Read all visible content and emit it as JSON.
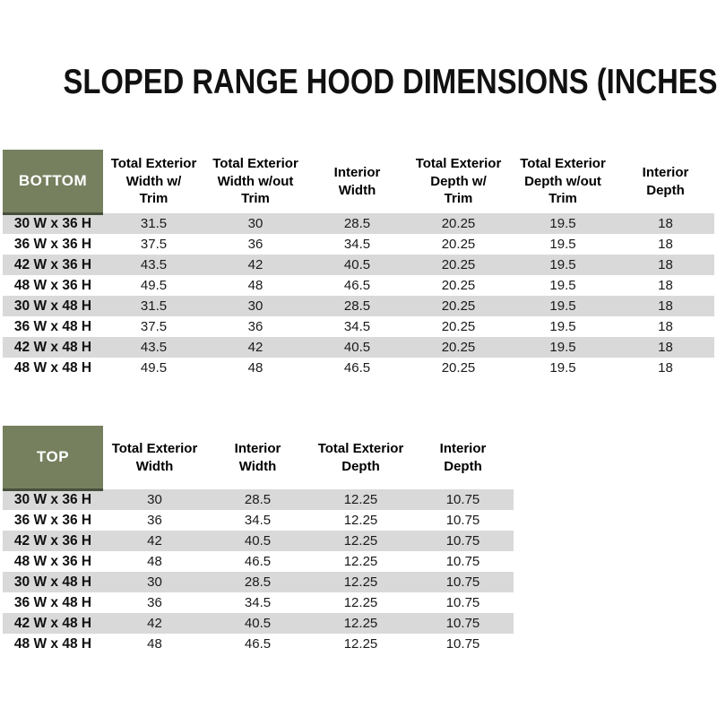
{
  "title": "SLOPED RANGE HOOD DIMENSIONS (INCHES)",
  "colors": {
    "header_green": "#76805F",
    "green_border": "#47503C",
    "stripe_gray": "#D9D9D9",
    "text": "#1A1A1A"
  },
  "bottom_table": {
    "label": "BOTTOM",
    "columns": [
      "Total Exterior\nWidth w/\nTrim",
      "Total Exterior\nWidth w/out\nTrim",
      "Interior\nWidth",
      "Total Exterior\nDepth w/\nTrim",
      "Total Exterior\nDepth w/out\nTrim",
      "Interior\nDepth"
    ],
    "rows": [
      {
        "size": "30 W x 36 H",
        "values": [
          "31.5",
          "30",
          "28.5",
          "20.25",
          "19.5",
          "18"
        ]
      },
      {
        "size": "36 W x 36 H",
        "values": [
          "37.5",
          "36",
          "34.5",
          "20.25",
          "19.5",
          "18"
        ]
      },
      {
        "size": "42 W x 36 H",
        "values": [
          "43.5",
          "42",
          "40.5",
          "20.25",
          "19.5",
          "18"
        ]
      },
      {
        "size": "48 W x 36 H",
        "values": [
          "49.5",
          "48",
          "46.5",
          "20.25",
          "19.5",
          "18"
        ]
      },
      {
        "size": "30 W x 48 H",
        "values": [
          "31.5",
          "30",
          "28.5",
          "20.25",
          "19.5",
          "18"
        ]
      },
      {
        "size": "36 W x 48 H",
        "values": [
          "37.5",
          "36",
          "34.5",
          "20.25",
          "19.5",
          "18"
        ]
      },
      {
        "size": "42 W x 48 H",
        "values": [
          "43.5",
          "42",
          "40.5",
          "20.25",
          "19.5",
          "18"
        ]
      },
      {
        "size": "48 W x 48 H",
        "values": [
          "49.5",
          "48",
          "46.5",
          "20.25",
          "19.5",
          "18"
        ]
      }
    ]
  },
  "top_table": {
    "label": "TOP",
    "columns": [
      "Total Exterior\nWidth",
      "Interior\nWidth",
      "Total Exterior\nDepth",
      "Interior\nDepth"
    ],
    "rows": [
      {
        "size": "30 W x 36 H",
        "values": [
          "30",
          "28.5",
          "12.25",
          "10.75"
        ]
      },
      {
        "size": "36 W x 36 H",
        "values": [
          "36",
          "34.5",
          "12.25",
          "10.75"
        ]
      },
      {
        "size": "42 W x 36 H",
        "values": [
          "42",
          "40.5",
          "12.25",
          "10.75"
        ]
      },
      {
        "size": "48 W x 36 H",
        "values": [
          "48",
          "46.5",
          "12.25",
          "10.75"
        ]
      },
      {
        "size": "30 W x 48 H",
        "values": [
          "30",
          "28.5",
          "12.25",
          "10.75"
        ]
      },
      {
        "size": "36 W x 48 H",
        "values": [
          "36",
          "34.5",
          "12.25",
          "10.75"
        ]
      },
      {
        "size": "42 W x 48 H",
        "values": [
          "42",
          "40.5",
          "12.25",
          "10.75"
        ]
      },
      {
        "size": "48 W x 48 H",
        "values": [
          "48",
          "46.5",
          "12.25",
          "10.75"
        ]
      }
    ]
  }
}
